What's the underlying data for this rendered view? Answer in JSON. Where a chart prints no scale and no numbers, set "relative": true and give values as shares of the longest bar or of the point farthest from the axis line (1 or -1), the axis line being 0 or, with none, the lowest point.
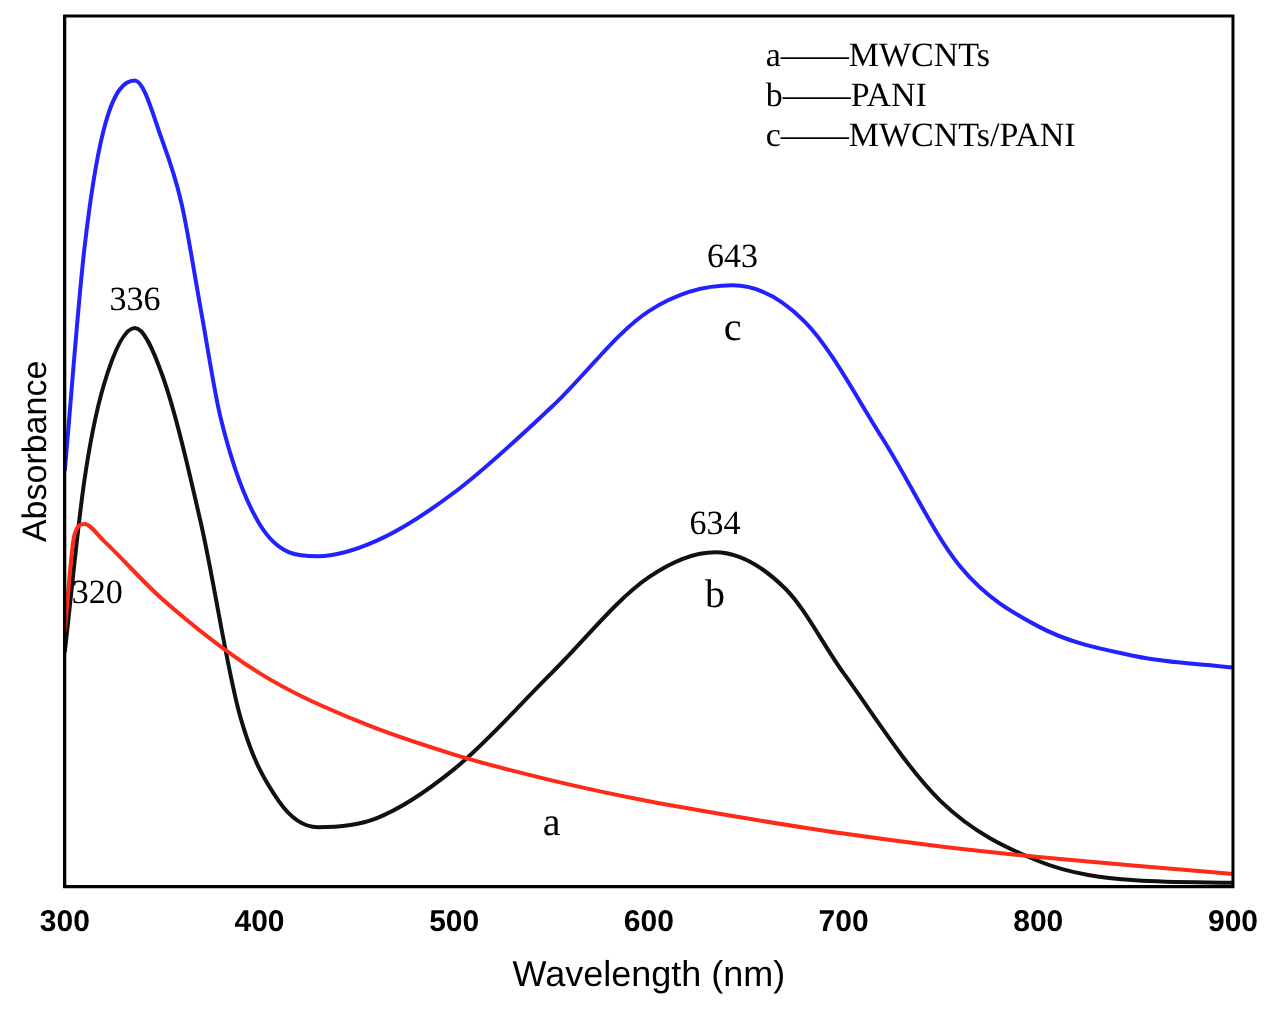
{
  "chart_data": {
    "type": "line",
    "xlabel": "Wavelength (nm)",
    "ylabel": "Absorbance",
    "relative": true,
    "tick_labels": "x",
    "grid": false,
    "legend": false,
    "marker": "none",
    "line_style": "solid",
    "xlim": [
      300,
      900
    ],
    "xticks": [
      300,
      400,
      500,
      600,
      700,
      800,
      900
    ],
    "series": [
      {
        "name": "a",
        "color": "#ff2a1a",
        "x": [
          300,
          305,
          310,
          320,
          350,
          400,
          450,
          500,
          550,
          600,
          650,
          700,
          750,
          800,
          850,
          900
        ],
        "values": [
          0.317,
          0.437,
          0.45,
          0.429,
          0.357,
          0.265,
          0.206,
          0.164,
          0.132,
          0.106,
          0.085,
          0.066,
          0.05,
          0.037,
          0.026,
          0.016
        ]
      },
      {
        "name": "b",
        "color": "#111111",
        "x": [
          300,
          310,
          320,
          336,
          350,
          370,
          390,
          410,
          430,
          460,
          500,
          550,
          600,
          634,
          670,
          700,
          750,
          800,
          850,
          900
        ],
        "values": [
          0.291,
          0.503,
          0.622,
          0.693,
          0.635,
          0.45,
          0.212,
          0.106,
          0.074,
          0.085,
          0.146,
          0.265,
          0.384,
          0.415,
          0.37,
          0.265,
          0.106,
          0.032,
          0.008,
          0.005
        ]
      },
      {
        "name": "c",
        "color": "#2222ff",
        "x": [
          300,
          310,
          320,
          336,
          350,
          360,
          370,
          380,
          400,
          430,
          460,
          500,
          550,
          600,
          643,
          680,
          720,
          760,
          800,
          850,
          900
        ],
        "values": [
          0.516,
          0.79,
          0.939,
          1,
          0.926,
          0.847,
          0.714,
          0.582,
          0.45,
          0.41,
          0.429,
          0.489,
          0.595,
          0.714,
          0.746,
          0.701,
          0.556,
          0.397,
          0.323,
          0.286,
          0.272
        ]
      }
    ],
    "annotations": [
      {
        "text": "336",
        "x": 336,
        "y": 0.693
      },
      {
        "text": "643",
        "x": 643,
        "y": 0.746
      },
      {
        "text": "634",
        "x": 634,
        "y": 0.415
      },
      {
        "text": "320",
        "x": 320,
        "y": 0.429
      },
      "a——MWCNTs",
      "b——PANI",
      "c——MWCNTs/PANI"
    ]
  }
}
